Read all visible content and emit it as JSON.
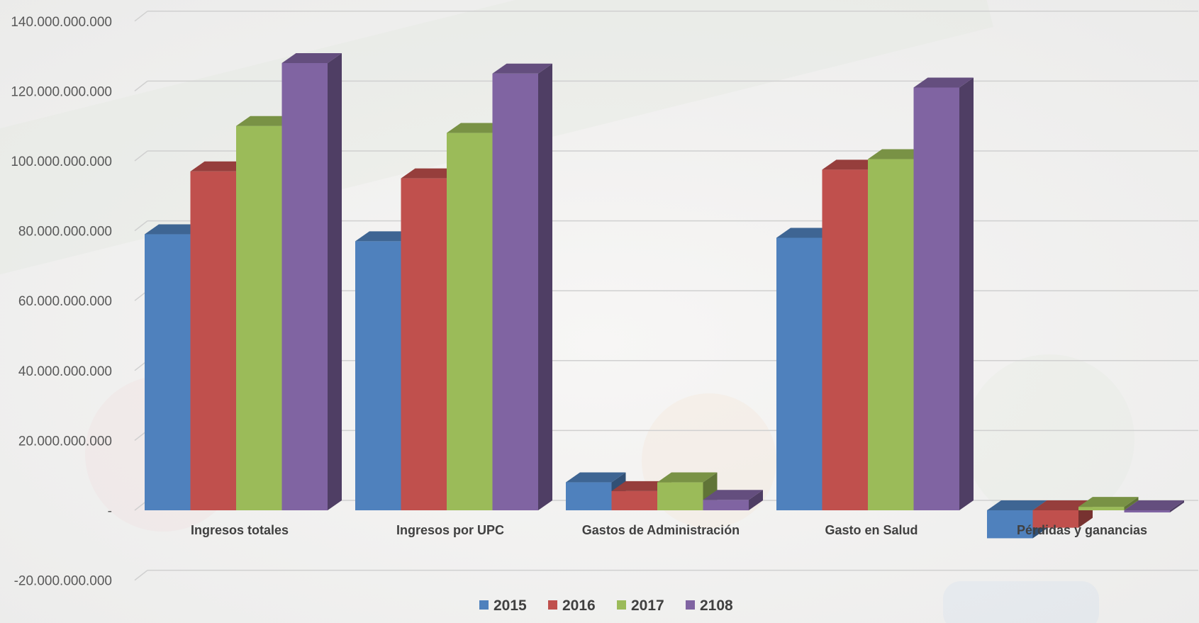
{
  "chart_data": {
    "type": "bar",
    "style": "3d-clustered-column",
    "categories": [
      "Ingresos totales",
      "Ingresos  por UPC",
      "Gastos  de Administración",
      "Gasto en Salud",
      "Pérdidas y ganancias"
    ],
    "series": [
      {
        "name": "2015",
        "color": "#4f81bd",
        "values": [
          79000000000,
          77000000000,
          8000000000,
          78000000000,
          -8000000000
        ]
      },
      {
        "name": "2016",
        "color": "#c0504d",
        "values": [
          97000000000,
          95000000000,
          5500000000,
          97500000000,
          -5000000000
        ]
      },
      {
        "name": "2017",
        "color": "#9bbb59",
        "values": [
          110000000000,
          108000000000,
          8000000000,
          100500000000,
          1000000000
        ]
      },
      {
        "name": "2108",
        "color": "#8064a2",
        "values": [
          128000000000,
          125000000000,
          3000000000,
          121000000000,
          0
        ]
      }
    ],
    "y_ticks": [
      {
        "value": 140000000000,
        "label": "140.000.000.000"
      },
      {
        "value": 120000000000,
        "label": "120.000.000.000"
      },
      {
        "value": 100000000000,
        "label": "100.000.000.000"
      },
      {
        "value": 80000000000,
        "label": "80.000.000.000"
      },
      {
        "value": 60000000000,
        "label": "60.000.000.000"
      },
      {
        "value": 40000000000,
        "label": "40.000.000.000"
      },
      {
        "value": 20000000000,
        "label": "20.000.000.000"
      },
      {
        "value": 0,
        "label": "-"
      },
      {
        "value": -20000000000,
        "label": "-20.000.000.000"
      }
    ],
    "ylim": [
      -20000000000,
      140000000000
    ],
    "grid": true,
    "legend": "bottom",
    "title": "",
    "xlabel": "",
    "ylabel": ""
  }
}
